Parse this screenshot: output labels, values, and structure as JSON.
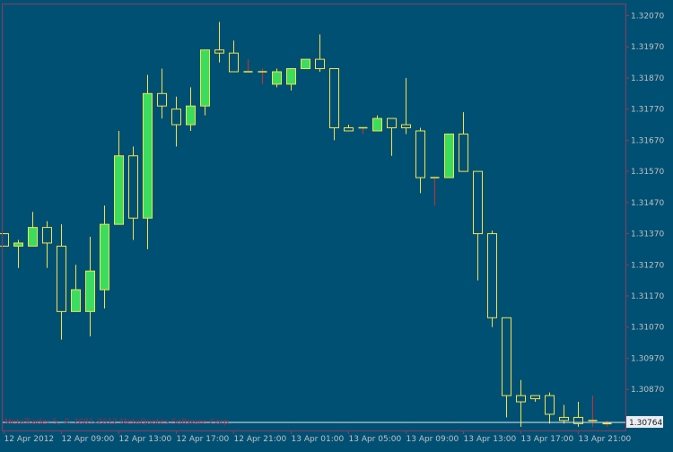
{
  "chart_data": {
    "type": "candlestick",
    "title": "",
    "watermark": "MetaTrader 5, © 2001-2012 MetaQuotes Software Corp.",
    "colors": {
      "background": "#005073",
      "frame": "#8E3A5A",
      "axis_text": "#C0C0C0",
      "up_body": "#3BDD5F",
      "down_body": "#005073",
      "candle_outline": "#F2E34A",
      "wick": "#F2E34A",
      "doji_wick": "#C83030",
      "price_line": "#E8E8E8",
      "price_tag_bg": "#E8EEF2",
      "watermark": "#8E2F4F"
    },
    "ylim": [
      1.30738,
      1.32106
    ],
    "y_ticks": [
      {
        "value": 1.3207,
        "label": "1.32070"
      },
      {
        "value": 1.3197,
        "label": "1.31970"
      },
      {
        "value": 1.3187,
        "label": "1.31870"
      },
      {
        "value": 1.3177,
        "label": "1.31770"
      },
      {
        "value": 1.3167,
        "label": "1.31670"
      },
      {
        "value": 1.3157,
        "label": "1.31570"
      },
      {
        "value": 1.3147,
        "label": "1.31470"
      },
      {
        "value": 1.3137,
        "label": "1.31370"
      },
      {
        "value": 1.3127,
        "label": "1.31270"
      },
      {
        "value": 1.3117,
        "label": "1.31170"
      },
      {
        "value": 1.3107,
        "label": "1.31070"
      },
      {
        "value": 1.3097,
        "label": "1.30970"
      },
      {
        "value": 1.3087,
        "label": "1.30870"
      }
    ],
    "current_price": {
      "value": 1.30764,
      "label": "1.30764"
    },
    "x_ticks": [
      {
        "index": 0,
        "label": "12 Apr 2012"
      },
      {
        "index": 4,
        "label": "12 Apr 09:00"
      },
      {
        "index": 8,
        "label": "12 Apr 13:00"
      },
      {
        "index": 12,
        "label": "12 Apr 17:00"
      },
      {
        "index": 16,
        "label": "12 Apr 21:00"
      },
      {
        "index": 20,
        "label": "13 Apr 01:00"
      },
      {
        "index": 24,
        "label": "13 Apr 05:00"
      },
      {
        "index": 28,
        "label": "13 Apr 09:00"
      },
      {
        "index": 32,
        "label": "13 Apr 13:00"
      },
      {
        "index": 36,
        "label": "13 Apr 17:00"
      },
      {
        "index": 40,
        "label": "13 Apr 21:00"
      }
    ],
    "candles": [
      {
        "o": 1.3137,
        "h": 1.3137,
        "l": 1.3133,
        "c": 1.3133
      },
      {
        "o": 1.3133,
        "h": 1.3135,
        "l": 1.3126,
        "c": 1.3134
      },
      {
        "o": 1.3133,
        "h": 1.3144,
        "l": 1.3133,
        "c": 1.3139
      },
      {
        "o": 1.3139,
        "h": 1.3141,
        "l": 1.3126,
        "c": 1.3134
      },
      {
        "o": 1.3133,
        "h": 1.314,
        "l": 1.3103,
        "c": 1.3112
      },
      {
        "o": 1.3112,
        "h": 1.3127,
        "l": 1.3112,
        "c": 1.3119
      },
      {
        "o": 1.3112,
        "h": 1.3136,
        "l": 1.3104,
        "c": 1.3125
      },
      {
        "o": 1.3119,
        "h": 1.3146,
        "l": 1.3113,
        "c": 1.314
      },
      {
        "o": 1.314,
        "h": 1.317,
        "l": 1.314,
        "c": 1.3162
      },
      {
        "o": 1.3162,
        "h": 1.3165,
        "l": 1.3135,
        "c": 1.3142
      },
      {
        "o": 1.3142,
        "h": 1.3188,
        "l": 1.3132,
        "c": 1.3182
      },
      {
        "o": 1.3182,
        "h": 1.319,
        "l": 1.3174,
        "c": 1.3178
      },
      {
        "o": 1.3177,
        "h": 1.3181,
        "l": 1.3165,
        "c": 1.3172
      },
      {
        "o": 1.3172,
        "h": 1.3184,
        "l": 1.317,
        "c": 1.3178
      },
      {
        "o": 1.3178,
        "h": 1.3196,
        "l": 1.3175,
        "c": 1.3196
      },
      {
        "o": 1.3196,
        "h": 1.3205,
        "l": 1.3192,
        "c": 1.3195
      },
      {
        "o": 1.3195,
        "h": 1.3199,
        "l": 1.3189,
        "c": 1.3189
      },
      {
        "o": 1.3189,
        "h": 1.3193,
        "l": 1.3189,
        "c": 1.3189
      },
      {
        "o": 1.3189,
        "h": 1.319,
        "l": 1.3185,
        "c": 1.3189
      },
      {
        "o": 1.3185,
        "h": 1.319,
        "l": 1.3184,
        "c": 1.3189
      },
      {
        "o": 1.3185,
        "h": 1.319,
        "l": 1.3183,
        "c": 1.319
      },
      {
        "o": 1.319,
        "h": 1.3193,
        "l": 1.319,
        "c": 1.3193
      },
      {
        "o": 1.3193,
        "h": 1.3201,
        "l": 1.3189,
        "c": 1.319
      },
      {
        "o": 1.319,
        "h": 1.319,
        "l": 1.3167,
        "c": 1.3171
      },
      {
        "o": 1.3171,
        "h": 1.3172,
        "l": 1.317,
        "c": 1.317
      },
      {
        "o": 1.3171,
        "h": 1.3171,
        "l": 1.3169,
        "c": 1.3171
      },
      {
        "o": 1.317,
        "h": 1.3175,
        "l": 1.317,
        "c": 1.3174
      },
      {
        "o": 1.3174,
        "h": 1.3174,
        "l": 1.3162,
        "c": 1.3171
      },
      {
        "o": 1.3172,
        "h": 1.3187,
        "l": 1.3169,
        "c": 1.3171
      },
      {
        "o": 1.317,
        "h": 1.3171,
        "l": 1.315,
        "c": 1.3155
      },
      {
        "o": 1.3155,
        "h": 1.3155,
        "l": 1.3146,
        "c": 1.3155
      },
      {
        "o": 1.3155,
        "h": 1.3169,
        "l": 1.3155,
        "c": 1.3169
      },
      {
        "o": 1.3169,
        "h": 1.3176,
        "l": 1.3157,
        "c": 1.3157
      },
      {
        "o": 1.3157,
        "h": 1.3157,
        "l": 1.3122,
        "c": 1.3137
      },
      {
        "o": 1.3137,
        "h": 1.3138,
        "l": 1.3107,
        "c": 1.311
      },
      {
        "o": 1.311,
        "h": 1.311,
        "l": 1.3078,
        "c": 1.3085
      },
      {
        "o": 1.3085,
        "h": 1.309,
        "l": 1.3075,
        "c": 1.3083
      },
      {
        "o": 1.3085,
        "h": 1.3085,
        "l": 1.3083,
        "c": 1.3084
      },
      {
        "o": 1.3085,
        "h": 1.3086,
        "l": 1.3076,
        "c": 1.3079
      },
      {
        "o": 1.3078,
        "h": 1.3082,
        "l": 1.3076,
        "c": 1.3077
      },
      {
        "o": 1.3078,
        "h": 1.3083,
        "l": 1.3075,
        "c": 1.3076
      },
      {
        "o": 1.3077,
        "h": 1.3085,
        "l": 1.3075,
        "c": 1.3077
      },
      {
        "o": 1.3076,
        "h": 1.3077,
        "l": 1.3075,
        "c": 1.3076
      }
    ]
  }
}
